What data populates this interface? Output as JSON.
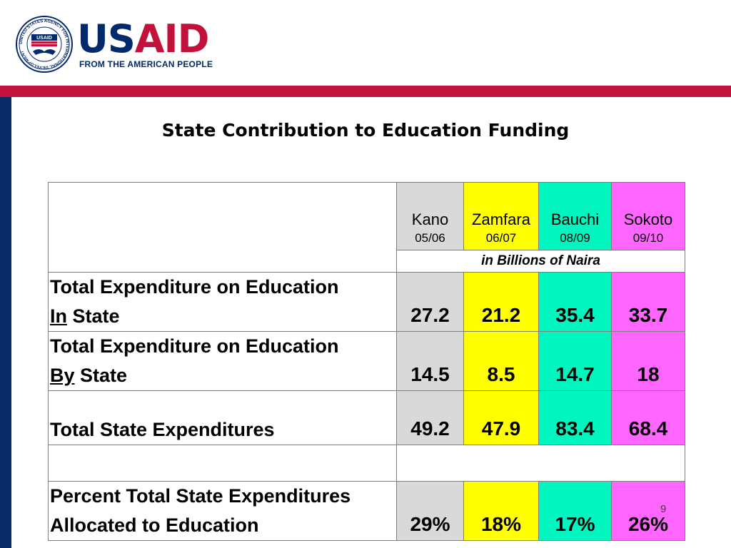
{
  "header": {
    "logo_us": "US",
    "logo_aid": "AID",
    "tagline": "FROM THE AMERICAN PEOPLE",
    "seal_text": "UNITED STATES AGENCY FOR INTERNATIONAL DEVELOPMENT",
    "seal_usaid": "USAID"
  },
  "title": "State Contribution to Education Funding",
  "table": {
    "states": [
      {
        "name": "Kano",
        "year": "05/06",
        "color": "#d9d9d9"
      },
      {
        "name": "Zamfara",
        "year": "06/07",
        "color": "#ffff00"
      },
      {
        "name": "Bauchi",
        "year": "08/09",
        "color": "#00f5bf"
      },
      {
        "name": "Sokoto",
        "year": "09/10",
        "color": "#ff66ff"
      }
    ],
    "unit": "in Billions of Naira",
    "rows": [
      {
        "line1": "Total Expenditure on Education",
        "line2_u": "In",
        "line2_rest": " State",
        "values": [
          "27.2",
          "21.2",
          "35.4",
          "33.7"
        ]
      },
      {
        "line1": "Total Expenditure on Education",
        "line2_u": "By",
        "line2_rest": " State",
        "values": [
          "14.5",
          "8.5",
          "14.7",
          "18"
        ]
      },
      {
        "label": "Total State Expenditures",
        "values": [
          "49.2",
          "47.9",
          "83.4",
          "68.4"
        ]
      },
      {
        "line1": "Percent  Total State Expenditures",
        "line2": "Allocated to  Education",
        "values": [
          "29%",
          "18%",
          "17%",
          "26%"
        ]
      }
    ]
  },
  "page_number": "9",
  "colors": {
    "brand_blue": "#002a6c",
    "brand_red": "#c2113a",
    "side_bar": "#0a2a66"
  }
}
